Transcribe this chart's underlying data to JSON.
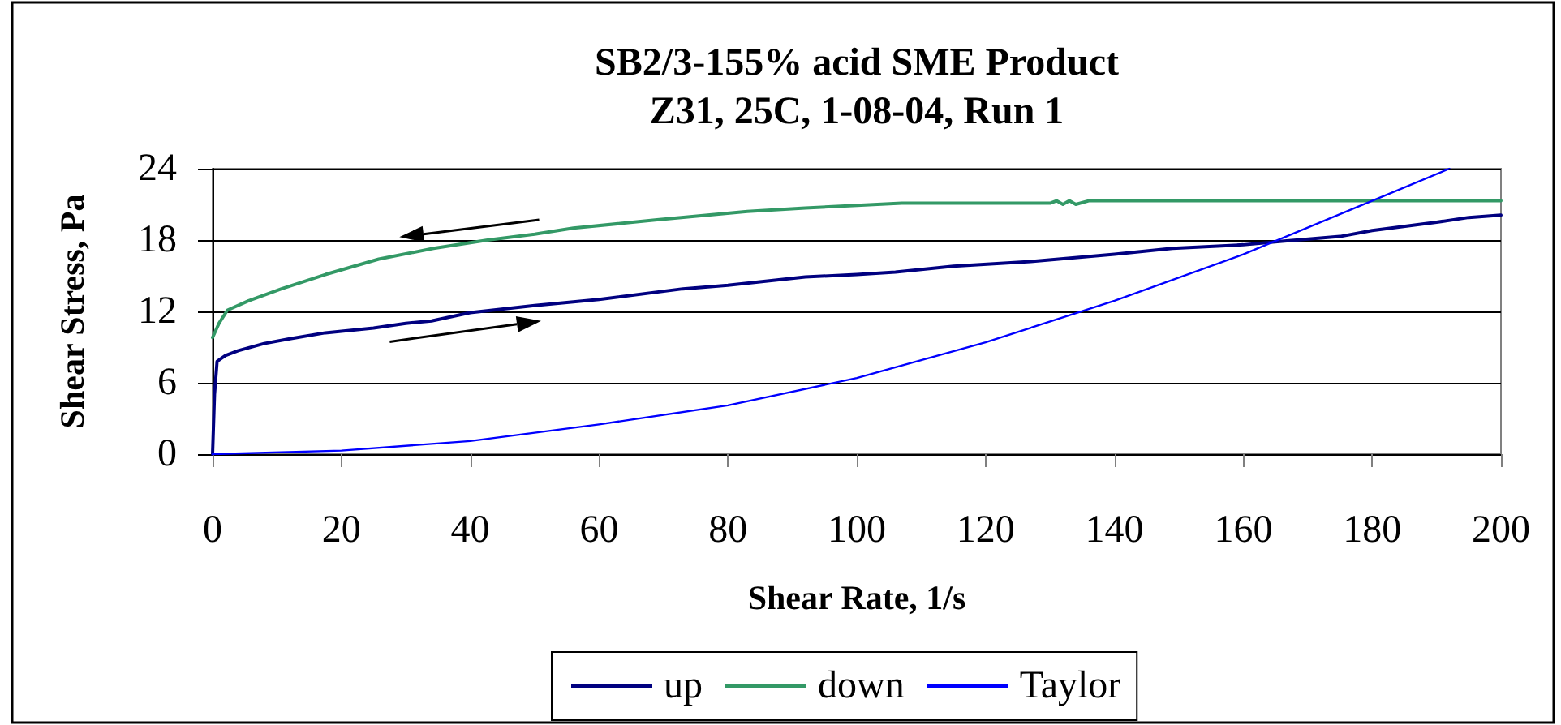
{
  "chart_data": {
    "type": "line",
    "title": "SB2/3-155% acid SME Product",
    "subtitle": "Z31, 25C, 1-08-04, Run 1",
    "xlabel": "Shear Rate, 1/s",
    "ylabel": "Shear Stress, Pa",
    "xlim": [
      0,
      200
    ],
    "ylim": [
      0,
      24
    ],
    "xticks": [
      0,
      20,
      40,
      60,
      80,
      100,
      120,
      140,
      160,
      180,
      200
    ],
    "yticks": [
      0,
      6,
      12,
      18,
      24
    ],
    "grid": "y",
    "legend": "bottom",
    "marker": "none",
    "series": [
      {
        "name": "up",
        "color": "#000080",
        "x": [
          0,
          0.3,
          0.7,
          2,
          4,
          8,
          12,
          17.5,
          25,
          30,
          34,
          40,
          50,
          60,
          73,
          80,
          92,
          100,
          106,
          115,
          127,
          140,
          149,
          160,
          166,
          175,
          180,
          190,
          195,
          200
        ],
        "values": [
          0,
          5,
          7.8,
          8.3,
          8.7,
          9.3,
          9.7,
          10.2,
          10.6,
          11.0,
          11.2,
          11.9,
          12.5,
          13.0,
          13.9,
          14.2,
          14.9,
          15.1,
          15.3,
          15.8,
          16.2,
          16.8,
          17.3,
          17.6,
          17.9,
          18.3,
          18.8,
          19.5,
          19.9,
          20.1
        ]
      },
      {
        "name": "down",
        "color": "#339966",
        "x": [
          0,
          1,
          2.3,
          5.6,
          10.7,
          17.5,
          25.8,
          34.3,
          42.7,
          50,
          56,
          69,
          83,
          92,
          107,
          130,
          131,
          132,
          133,
          134,
          136,
          200
        ],
        "values": [
          9.8,
          11.0,
          12.1,
          12.9,
          13.9,
          15.1,
          16.4,
          17.3,
          18.0,
          18.5,
          19.0,
          19.7,
          20.4,
          20.7,
          21.1,
          21.1,
          21.3,
          21.0,
          21.3,
          21.0,
          21.3,
          21.3
        ]
      },
      {
        "name": "Taylor",
        "color": "#0000ff",
        "x": [
          0,
          20,
          40,
          60,
          80,
          100,
          120,
          140,
          160,
          180,
          192
        ],
        "values": [
          0,
          0.3,
          1.1,
          2.5,
          4.1,
          6.4,
          9.4,
          12.9,
          16.8,
          21.3,
          24
        ]
      }
    ]
  }
}
